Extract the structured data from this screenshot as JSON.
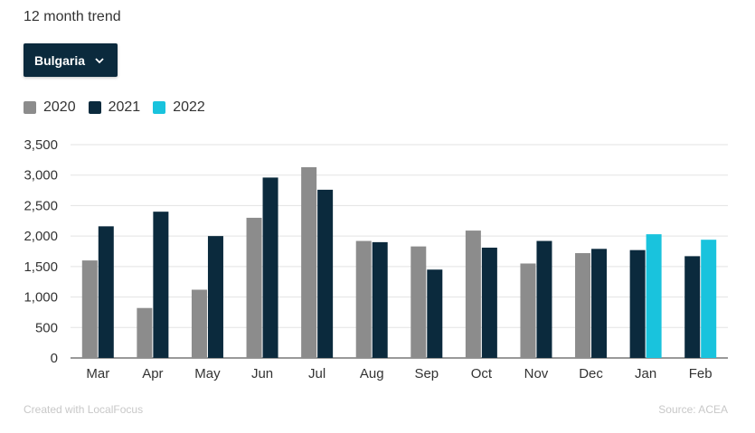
{
  "header": {
    "subtitle": "12 month trend"
  },
  "dropdown": {
    "selected": "Bulgaria"
  },
  "legend": [
    {
      "label": "2020",
      "color": "#8c8c8c"
    },
    {
      "label": "2021",
      "color": "#0b2a3d"
    },
    {
      "label": "2022",
      "color": "#19c3dd"
    }
  ],
  "footer": {
    "credit": "Created with LocalFocus",
    "source": "Source:  ACEA"
  },
  "chart_data": {
    "type": "bar",
    "categories": [
      "Mar",
      "Apr",
      "May",
      "Jun",
      "Jul",
      "Aug",
      "Sep",
      "Oct",
      "Nov",
      "Dec",
      "Jan",
      "Feb"
    ],
    "series": [
      {
        "name": "2020",
        "color": "#8c8c8c",
        "values": [
          1600,
          820,
          1120,
          2300,
          3130,
          1920,
          1830,
          2090,
          1550,
          1720,
          null,
          null
        ]
      },
      {
        "name": "2021",
        "color": "#0b2a3d",
        "values": [
          2160,
          2400,
          2000,
          2960,
          2760,
          1900,
          1450,
          1810,
          1920,
          1790,
          1770,
          1670
        ]
      },
      {
        "name": "2022",
        "color": "#19c3dd",
        "values": [
          null,
          null,
          null,
          null,
          null,
          null,
          null,
          null,
          null,
          null,
          2030,
          1940
        ]
      }
    ],
    "yticks": [
      0,
      500,
      1000,
      1500,
      2000,
      2500,
      3000,
      3500
    ],
    "ytick_labels": [
      "0",
      "500",
      "1,000",
      "1,500",
      "2,000",
      "2,500",
      "3,000",
      "3,500"
    ],
    "ylim": [
      0,
      3500
    ],
    "grid": true,
    "legend_position": "top-left"
  }
}
